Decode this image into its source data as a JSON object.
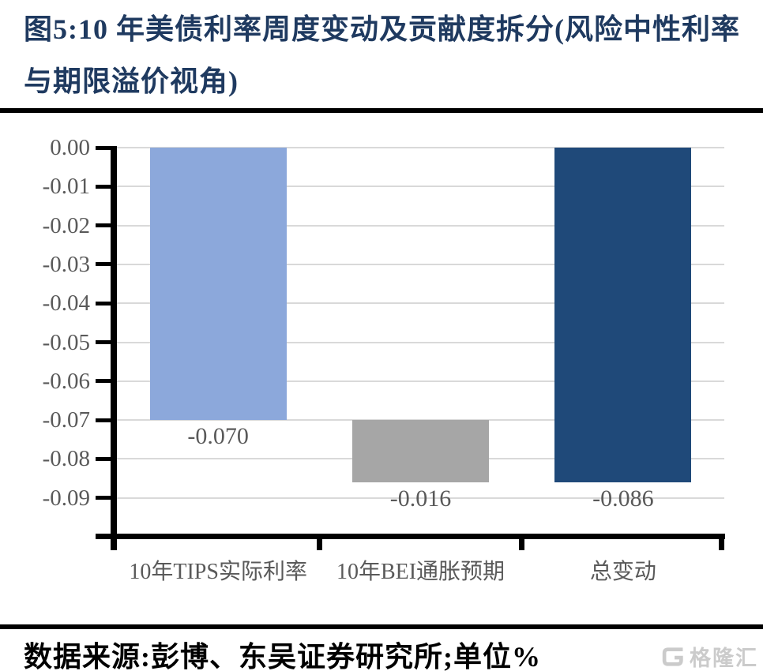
{
  "page": {
    "title": "图5:10 年美债利率周度变动及贡献度拆分(风险中性利率与期限溢价视角)",
    "source_note": "数据来源:彭博、东吴证券研究所;单位%"
  },
  "watermark": {
    "icon": "gelonghui-g-icon",
    "brand": "格隆汇"
  },
  "chart_data": {
    "type": "bar",
    "subtype": "waterfall",
    "title": "10 年美债利率周度变动及贡献度拆分(风险中性利率与期限溢价视角)",
    "unit": "%",
    "categories": [
      "10年TIPS实际利率",
      "10年BEI通胀预期",
      "总变动"
    ],
    "values": [
      -0.07,
      -0.016,
      -0.086
    ],
    "bars": [
      {
        "category": "10年TIPS实际利率",
        "value": -0.07,
        "label": "-0.070",
        "from": 0,
        "to": -0.07,
        "color": "#8CA8DB"
      },
      {
        "category": "10年BEI通胀预期",
        "value": -0.016,
        "label": "-0.016",
        "from": -0.07,
        "to": -0.086,
        "color": "#A6A6A6"
      },
      {
        "category": "总变动",
        "value": -0.086,
        "label": "-0.086",
        "from": 0,
        "to": -0.086,
        "color": "#1F4979"
      }
    ],
    "y_axis": {
      "tick_labels": [
        "0.00",
        "-0.01",
        "-0.02",
        "-0.03",
        "-0.04",
        "-0.05",
        "-0.06",
        "-0.07",
        "-0.08",
        "-0.09"
      ],
      "tick_values": [
        0,
        -0.01,
        -0.02,
        -0.03,
        -0.04,
        -0.05,
        -0.06,
        -0.07,
        -0.08,
        -0.09
      ],
      "range": [
        -0.099,
        0
      ]
    },
    "grid": true,
    "legend": "none"
  },
  "colors": {
    "title_text": "#1F3A60",
    "separator": "#000000",
    "axis": "#000000",
    "gridline": "#D9D9D9",
    "tick_label_text": "#595959",
    "data_label_text": "#595959",
    "category_label_text": "#595959",
    "bar_light_blue": "#8CA8DB",
    "bar_gray": "#A6A6A6",
    "bar_dark_blue": "#1F4979",
    "watermark": "#CBCBCB",
    "background": "#FFFFFF"
  }
}
